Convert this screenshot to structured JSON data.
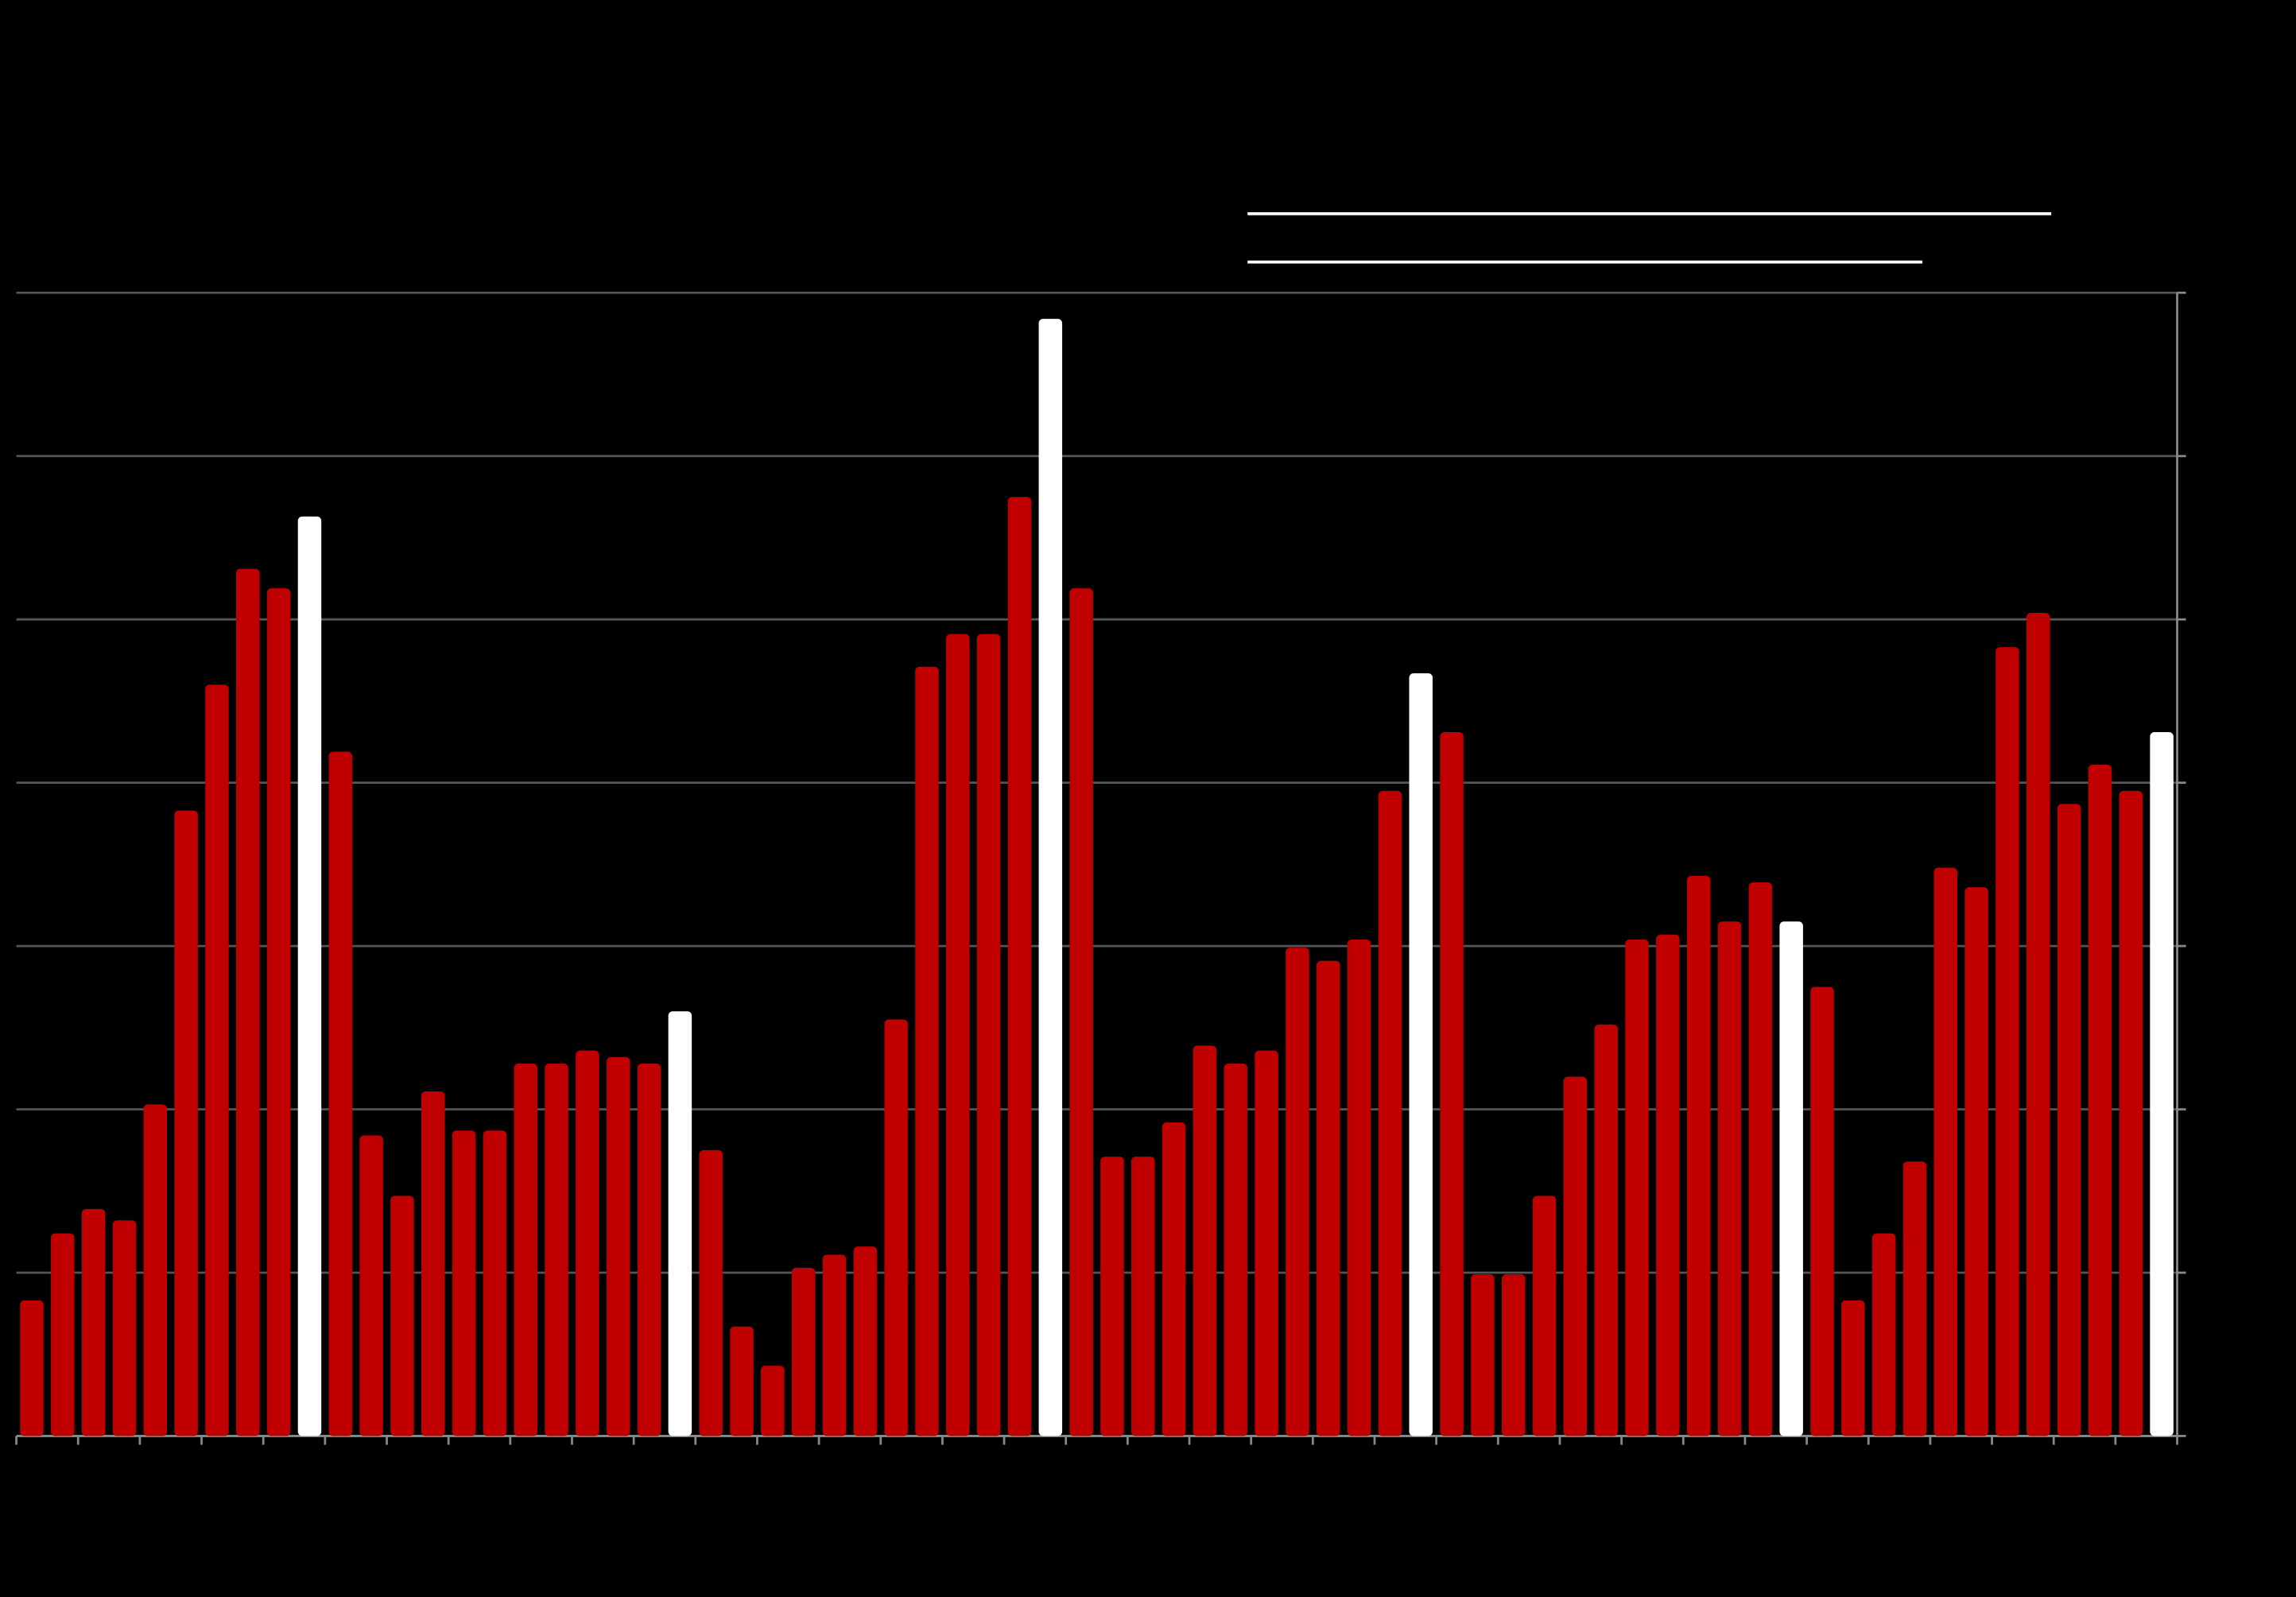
{
  "chart_data": {
    "type": "bar",
    "values": [
      0.83,
      1.24,
      1.39,
      1.32,
      2.03,
      3.83,
      4.6,
      5.31,
      5.19,
      5.63,
      4.19,
      1.84,
      1.47,
      2.11,
      1.87,
      1.87,
      2.28,
      2.28,
      2.36,
      2.32,
      2.28,
      2.6,
      1.75,
      0.67,
      0.43,
      1.03,
      1.11,
      1.16,
      2.55,
      4.71,
      4.91,
      4.91,
      5.75,
      6.84,
      5.19,
      1.71,
      1.71,
      1.92,
      2.39,
      2.28,
      2.36,
      2.99,
      2.91,
      3.04,
      3.95,
      4.67,
      4.31,
      0.99,
      0.99,
      1.47,
      2.2,
      2.52,
      3.04,
      3.07,
      3.43,
      3.15,
      3.39,
      3.15,
      2.75,
      0.83,
      1.24,
      1.68,
      3.48,
      3.36,
      4.83,
      5.04,
      3.87,
      4.11,
      3.95,
      4.31
    ],
    "colors": [
      "#c00000",
      "#c00000",
      "#c00000",
      "#c00000",
      "#c00000",
      "#c00000",
      "#c00000",
      "#c00000",
      "#c00000",
      "#ffffff",
      "#c00000",
      "#c00000",
      "#c00000",
      "#c00000",
      "#c00000",
      "#c00000",
      "#c00000",
      "#c00000",
      "#c00000",
      "#c00000",
      "#c00000",
      "#ffffff",
      "#c00000",
      "#c00000",
      "#c00000",
      "#c00000",
      "#c00000",
      "#c00000",
      "#c00000",
      "#c00000",
      "#c00000",
      "#c00000",
      "#c00000",
      "#ffffff",
      "#c00000",
      "#c00000",
      "#c00000",
      "#c00000",
      "#c00000",
      "#c00000",
      "#c00000",
      "#c00000",
      "#c00000",
      "#c00000",
      "#c00000",
      "#ffffff",
      "#c00000",
      "#c00000",
      "#c00000",
      "#c00000",
      "#c00000",
      "#c00000",
      "#c00000",
      "#c00000",
      "#c00000",
      "#c00000",
      "#c00000",
      "#ffffff",
      "#c00000",
      "#c00000",
      "#c00000",
      "#c00000",
      "#c00000",
      "#c00000",
      "#c00000",
      "#c00000",
      "#c00000",
      "#c00000",
      "#c00000",
      "#ffffff"
    ],
    "ylim": [
      0,
      7
    ],
    "yticks": [
      0,
      1,
      2,
      3,
      4,
      5,
      6,
      7
    ],
    "grid": true
  }
}
